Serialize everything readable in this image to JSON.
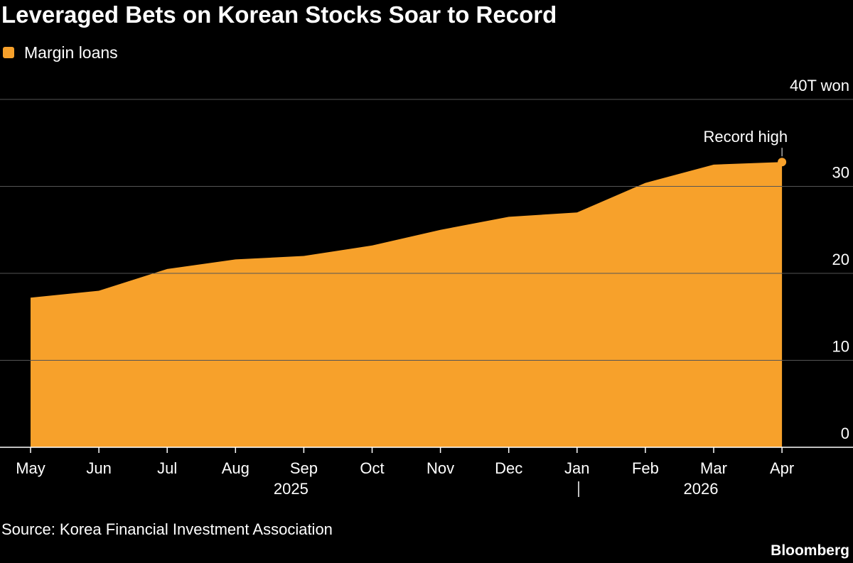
{
  "chart_data": {
    "type": "area",
    "title": "Leveraged Bets on Korean Stocks Soar to Record",
    "source": "Source: Korea Financial Investment Association",
    "brand": "Bloomberg",
    "annotation": "Record high",
    "color": "#f7a12b",
    "grid": true,
    "x": [
      "2025-05",
      "2025-06",
      "2025-07",
      "2025-08",
      "2025-09",
      "2025-10",
      "2025-11",
      "2025-12",
      "2026-01",
      "2026-02",
      "2026-03",
      "2026-04"
    ],
    "xticks": [
      {
        "value": "2025-05",
        "label": "May"
      },
      {
        "value": "2025-06",
        "label": "Jun"
      },
      {
        "value": "2025-07",
        "label": "Jul"
      },
      {
        "value": "2025-08",
        "label": "Aug"
      },
      {
        "value": "2025-09",
        "label": "Sep"
      },
      {
        "value": "2025-10",
        "label": "Oct"
      },
      {
        "value": "2025-11",
        "label": "Nov"
      },
      {
        "value": "2025-12",
        "label": "Dec"
      },
      {
        "value": "2026-01",
        "label": "Jan"
      },
      {
        "value": "2026-02",
        "label": "Feb"
      },
      {
        "value": "2026-03",
        "label": "Mar"
      },
      {
        "value": "2026-04",
        "label": "Apr"
      }
    ],
    "years": [
      {
        "value": "2025-09",
        "label": "2025"
      },
      {
        "value": "2026-03",
        "label": "2026"
      }
    ],
    "series": [
      {
        "name": "Margin loans",
        "color": "#f7a12b",
        "values": [
          17.2,
          18.0,
          20.5,
          21.6,
          22.0,
          23.2,
          25.0,
          26.5,
          27.0,
          30.4,
          32.5,
          32.8
        ]
      }
    ],
    "ylim": [
      0,
      40
    ],
    "yticks": [
      0,
      10,
      20,
      30,
      {
        "value": 40,
        "label": "40T won"
      }
    ]
  }
}
